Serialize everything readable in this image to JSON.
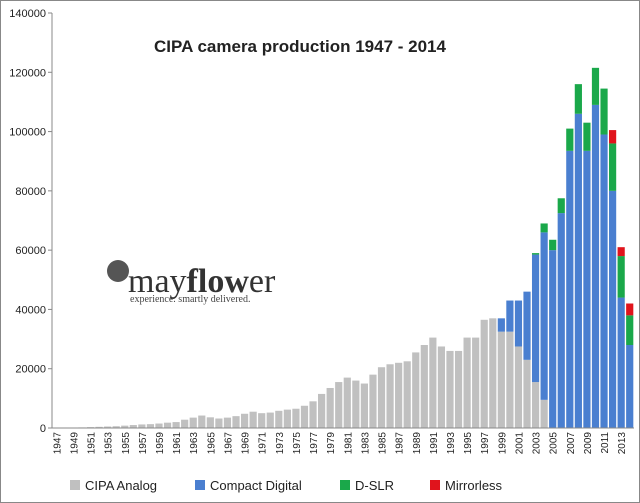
{
  "chart_data": {
    "type": "stacked_bar",
    "title": "CIPA  camera production 1947 - 2014",
    "watermark": {
      "brand_light": "may",
      "brand_bold": "flow",
      "brand_end": "er",
      "tagline": "experience. smartly delivered."
    },
    "categories": [
      "1947",
      null,
      "1949",
      null,
      "1951",
      null,
      "1953",
      null,
      "1955",
      null,
      "1957",
      null,
      "1959",
      null,
      "1961",
      null,
      "1963",
      null,
      "1965",
      null,
      "1967",
      null,
      "1969",
      null,
      "1971",
      null,
      "1973",
      null,
      "1975",
      null,
      "1977",
      null,
      "1979",
      null,
      "1981",
      null,
      "1983",
      null,
      "1985",
      null,
      "1987",
      null,
      "1989",
      null,
      "1991",
      null,
      "1993",
      null,
      "1995",
      null,
      "1997",
      null,
      "1999",
      null,
      "2001",
      null,
      "2003",
      null,
      "2005",
      null,
      "2007",
      null,
      "2009",
      null,
      "2011",
      null,
      "2013",
      null
    ],
    "series": [
      {
        "name": "CIPA Analog",
        "color": "#c0c0c0",
        "values": [
          50,
          100,
          150,
          200,
          300,
          400,
          500,
          600,
          800,
          1000,
          1200,
          1300,
          1500,
          1800,
          2000,
          2800,
          3500,
          4200,
          3600,
          3200,
          3500,
          4000,
          4800,
          5500,
          5000,
          5200,
          5800,
          6200,
          6500,
          7500,
          9000,
          11500,
          13500,
          15500,
          17000,
          16000,
          15000,
          18000,
          20500,
          21500,
          22000,
          22500,
          25500,
          28000,
          30500,
          27500,
          26000,
          26000,
          30500,
          30500,
          36500,
          37000,
          32500,
          32500,
          27500,
          23000,
          15500,
          9500,
          0,
          0,
          0,
          0,
          0,
          0,
          0,
          0,
          0,
          0
        ]
      },
      {
        "name": "Compact Digital",
        "color": "#4a7fd0",
        "values": [
          0,
          0,
          0,
          0,
          0,
          0,
          0,
          0,
          0,
          0,
          0,
          0,
          0,
          0,
          0,
          0,
          0,
          0,
          0,
          0,
          0,
          0,
          0,
          0,
          0,
          0,
          0,
          0,
          0,
          0,
          0,
          0,
          0,
          0,
          0,
          0,
          0,
          0,
          0,
          0,
          0,
          0,
          0,
          0,
          0,
          0,
          0,
          0,
          0,
          0,
          0,
          0,
          4500,
          10500,
          15500,
          23000,
          43000,
          56500,
          60000,
          72500,
          93500,
          106000,
          93500,
          109000,
          99000,
          80000,
          44000,
          28000
        ]
      },
      {
        "name": "D-SLR",
        "color": "#1aa84a",
        "values": [
          0,
          0,
          0,
          0,
          0,
          0,
          0,
          0,
          0,
          0,
          0,
          0,
          0,
          0,
          0,
          0,
          0,
          0,
          0,
          0,
          0,
          0,
          0,
          0,
          0,
          0,
          0,
          0,
          0,
          0,
          0,
          0,
          0,
          0,
          0,
          0,
          0,
          0,
          0,
          0,
          0,
          0,
          0,
          0,
          0,
          0,
          0,
          0,
          0,
          0,
          0,
          0,
          0,
          0,
          0,
          0,
          500,
          3000,
          3500,
          5000,
          7500,
          10000,
          9500,
          12500,
          15500,
          16000,
          14000,
          10000
        ]
      },
      {
        "name": "Mirrorless",
        "color": "#e0141c",
        "values": [
          0,
          0,
          0,
          0,
          0,
          0,
          0,
          0,
          0,
          0,
          0,
          0,
          0,
          0,
          0,
          0,
          0,
          0,
          0,
          0,
          0,
          0,
          0,
          0,
          0,
          0,
          0,
          0,
          0,
          0,
          0,
          0,
          0,
          0,
          0,
          0,
          0,
          0,
          0,
          0,
          0,
          0,
          0,
          0,
          0,
          0,
          0,
          0,
          0,
          0,
          0,
          0,
          0,
          0,
          0,
          0,
          0,
          0,
          0,
          0,
          0,
          0,
          0,
          0,
          0,
          4500,
          3000,
          4000
        ]
      }
    ],
    "ylim": [
      0,
      140000
    ],
    "yticks": [
      0,
      20000,
      40000,
      60000,
      80000,
      100000,
      120000,
      140000
    ],
    "grid": false,
    "legend": "bottom"
  }
}
